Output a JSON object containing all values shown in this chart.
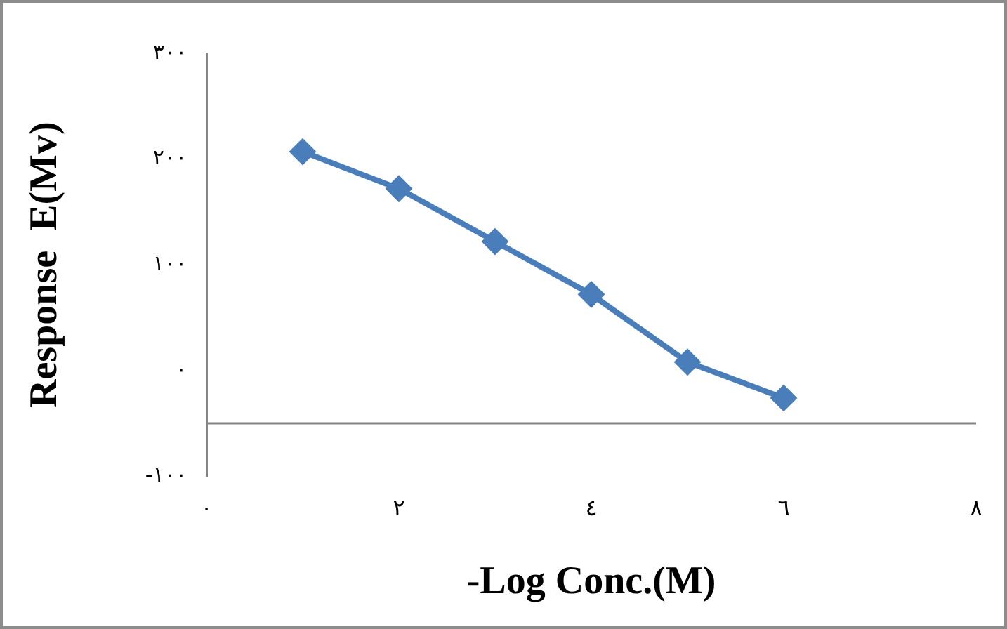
{
  "chart_data": {
    "type": "line",
    "xlabel": "-Log Conc.(M)",
    "ylabel": "Response  E(Mv)",
    "x": [
      1,
      2,
      3,
      4,
      5,
      6
    ],
    "series": [
      {
        "color": "#4a7ebb",
        "values": [
          207,
          172,
          122,
          72,
          8,
          -26
        ]
      }
    ],
    "xlim": [
      0,
      8
    ],
    "xticks": [
      {
        "value": 0,
        "label": "٠"
      },
      {
        "value": 2,
        "label": "٢"
      },
      {
        "value": 4,
        "label": "٤"
      },
      {
        "value": 6,
        "label": "٦"
      },
      {
        "value": 8,
        "label": "٨"
      }
    ],
    "ylim": [
      -100,
      300
    ],
    "yticks": [
      {
        "value": -100,
        "label": "-١٠٠"
      },
      {
        "value": 0,
        "label": "٠"
      },
      {
        "value": 100,
        "label": "١٠٠"
      },
      {
        "value": 200,
        "label": "٢٠٠"
      },
      {
        "value": 300,
        "label": "٣٠٠"
      }
    ],
    "ref_lines": [
      {
        "axis": "y",
        "value": -50,
        "color": "#868686"
      }
    ],
    "grid": false,
    "legend": false,
    "marker": "diamond",
    "line_style": "solid"
  }
}
